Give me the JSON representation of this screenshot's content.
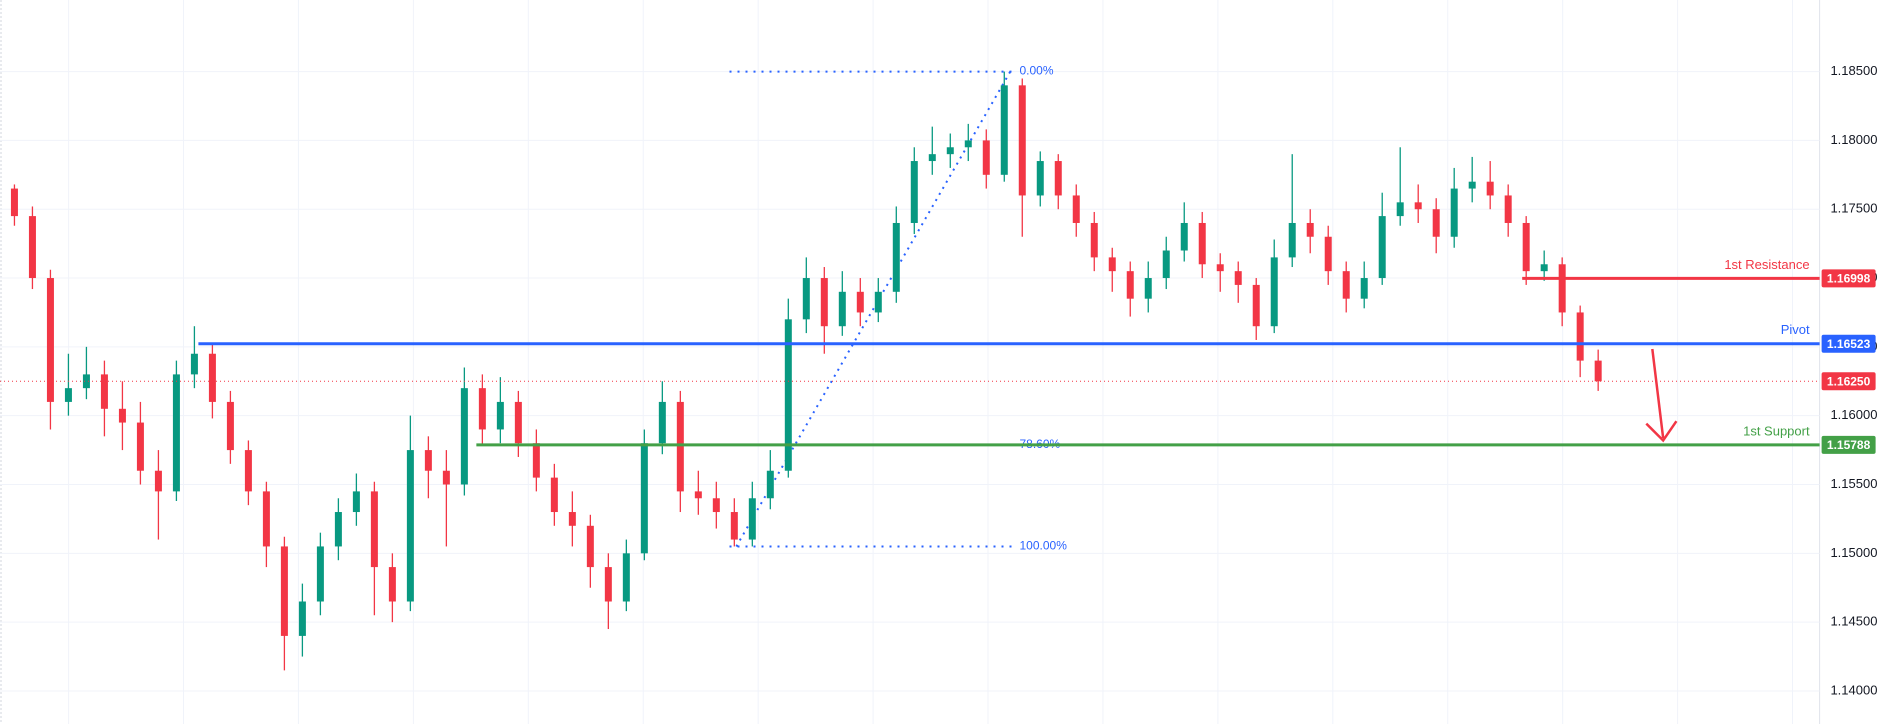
{
  "chart_data": {
    "type": "candlestick",
    "open": [
      1.1765,
      1.1745,
      1.17,
      1.161,
      1.162,
      1.163,
      1.1605,
      1.1595,
      1.156,
      1.1545,
      1.163,
      1.1645,
      1.161,
      1.1575,
      1.1545,
      1.1505,
      1.144,
      1.1465,
      1.1505,
      1.153,
      1.1545,
      1.149,
      1.1465,
      1.1575,
      1.156,
      1.155,
      1.162,
      1.159,
      1.161,
      1.158,
      1.1555,
      1.153,
      1.152,
      1.149,
      1.1465,
      1.15,
      1.158,
      1.161,
      1.1545,
      1.154,
      1.153,
      1.151,
      1.154,
      1.156,
      1.167,
      1.17,
      1.1665,
      1.169,
      1.1675,
      1.169,
      1.174,
      1.1785,
      1.179,
      1.1795,
      1.18,
      1.1775,
      1.184,
      1.176,
      1.1785,
      1.176,
      1.174,
      1.1715,
      1.1705,
      1.1685,
      1.17,
      1.172,
      1.174,
      1.171,
      1.1705,
      1.1695,
      1.1665,
      1.1715,
      1.174,
      1.173,
      1.1705,
      1.1685,
      1.17,
      1.1745,
      1.1755,
      1.175,
      1.173,
      1.1765,
      1.177,
      1.176,
      1.174,
      1.1705,
      1.171,
      1.1675,
      1.164
    ],
    "high": [
      1.1768,
      1.1752,
      1.1706,
      1.1645,
      1.165,
      1.164,
      1.1625,
      1.161,
      1.1575,
      1.164,
      1.1665,
      1.1652,
      1.1618,
      1.1582,
      1.1552,
      1.1512,
      1.1478,
      1.1515,
      1.154,
      1.1558,
      1.1552,
      1.15,
      1.16,
      1.1585,
      1.1575,
      1.1635,
      1.163,
      1.1628,
      1.1618,
      1.159,
      1.1565,
      1.1545,
      1.1528,
      1.15,
      1.151,
      1.159,
      1.1625,
      1.1618,
      1.156,
      1.1552,
      1.154,
      1.1552,
      1.1575,
      1.1685,
      1.1715,
      1.1708,
      1.1705,
      1.17,
      1.17,
      1.1752,
      1.1795,
      1.181,
      1.1805,
      1.1812,
      1.1808,
      1.185,
      1.1845,
      1.1792,
      1.179,
      1.1768,
      1.1748,
      1.1722,
      1.1712,
      1.1712,
      1.173,
      1.1755,
      1.1748,
      1.1718,
      1.1712,
      1.17,
      1.1728,
      1.179,
      1.175,
      1.1738,
      1.1712,
      1.1712,
      1.1762,
      1.1795,
      1.1768,
      1.1758,
      1.178,
      1.1788,
      1.1785,
      1.1768,
      1.1745,
      1.172,
      1.1715,
      1.168,
      1.1648
    ],
    "low": [
      1.1738,
      1.1692,
      1.159,
      1.16,
      1.1612,
      1.1585,
      1.1575,
      1.155,
      1.151,
      1.1538,
      1.162,
      1.1598,
      1.1565,
      1.1535,
      1.149,
      1.1415,
      1.1425,
      1.1455,
      1.1495,
      1.152,
      1.1455,
      1.145,
      1.1458,
      1.154,
      1.1505,
      1.1542,
      1.1578,
      1.158,
      1.157,
      1.1545,
      1.152,
      1.1505,
      1.1475,
      1.1445,
      1.1458,
      1.1495,
      1.1572,
      1.153,
      1.1528,
      1.1518,
      1.1505,
      1.1505,
      1.1532,
      1.1555,
      1.166,
      1.1645,
      1.1658,
      1.1665,
      1.1668,
      1.1682,
      1.1732,
      1.1775,
      1.178,
      1.1785,
      1.1765,
      1.177,
      1.173,
      1.1752,
      1.175,
      1.173,
      1.1705,
      1.169,
      1.1672,
      1.1675,
      1.1692,
      1.1712,
      1.17,
      1.169,
      1.1682,
      1.1655,
      1.166,
      1.1708,
      1.1718,
      1.1695,
      1.1675,
      1.1678,
      1.1695,
      1.1738,
      1.174,
      1.1718,
      1.1722,
      1.1755,
      1.175,
      1.173,
      1.1695,
      1.1698,
      1.1665,
      1.1628,
      1.1618
    ],
    "close": [
      1.1745,
      1.17,
      1.161,
      1.162,
      1.163,
      1.1605,
      1.1595,
      1.156,
      1.1545,
      1.163,
      1.1645,
      1.161,
      1.1575,
      1.1545,
      1.1505,
      1.144,
      1.1465,
      1.1505,
      1.153,
      1.1545,
      1.149,
      1.1465,
      1.1575,
      1.156,
      1.155,
      1.162,
      1.159,
      1.161,
      1.158,
      1.1555,
      1.153,
      1.152,
      1.149,
      1.1465,
      1.15,
      1.158,
      1.161,
      1.1545,
      1.154,
      1.153,
      1.151,
      1.154,
      1.156,
      1.167,
      1.17,
      1.1665,
      1.169,
      1.1675,
      1.169,
      1.174,
      1.1785,
      1.179,
      1.1795,
      1.18,
      1.1775,
      1.184,
      1.176,
      1.1785,
      1.176,
      1.174,
      1.1715,
      1.1705,
      1.1685,
      1.17,
      1.172,
      1.174,
      1.171,
      1.1705,
      1.1695,
      1.1665,
      1.1715,
      1.174,
      1.173,
      1.1705,
      1.1685,
      1.17,
      1.1745,
      1.1755,
      1.175,
      1.173,
      1.1765,
      1.177,
      1.176,
      1.174,
      1.1705,
      1.171,
      1.1675,
      1.164,
      1.1625
    ],
    "up_color": "#089981",
    "down_color": "#f23645",
    "ylim": [
      1.1376,
      1.1902
    ],
    "yticks": [
      {
        "value": 1.14,
        "label": "1.14000"
      },
      {
        "value": 1.145,
        "label": "1.14500"
      },
      {
        "value": 1.15,
        "label": "1.15000"
      },
      {
        "value": 1.155,
        "label": "1.15500"
      },
      {
        "value": 1.16,
        "label": "1.16000"
      },
      {
        "value": 1.165,
        "label": "1.16500"
      },
      {
        "value": 1.17,
        "label": "1.17000"
      },
      {
        "value": 1.175,
        "label": "1.17500"
      },
      {
        "value": 1.18,
        "label": "1.18000"
      },
      {
        "value": 1.185,
        "label": "1.18500"
      }
    ],
    "grid": true,
    "levels": [
      {
        "name": "1st Resistance",
        "value": 1.16998,
        "color": "#f23645"
      },
      {
        "name": "Pivot",
        "value": 1.16523,
        "color": "#2962ff"
      },
      {
        "name": "1st Support",
        "value": 1.15788,
        "color": "#43a047"
      }
    ],
    "last_price": {
      "value": 1.1625,
      "label": "1.16250",
      "color": "#f23645"
    },
    "fib": {
      "high": 1.185,
      "low": 1.1505,
      "color": "#2962ff",
      "levels": [
        {
          "value": 0,
          "label": "0.00%"
        },
        {
          "value": 78.6,
          "label": "78.60%"
        },
        {
          "value": 100,
          "label": "100.00%"
        }
      ]
    }
  }
}
